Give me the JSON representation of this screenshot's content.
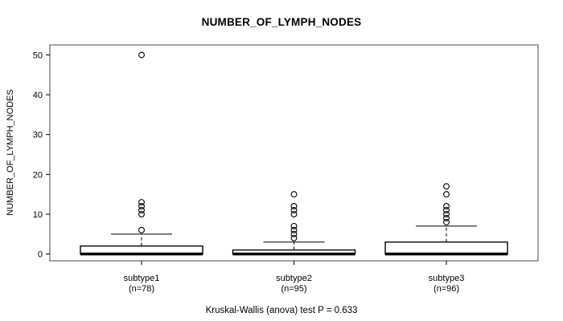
{
  "chart_data": {
    "type": "boxplot",
    "title": "NUMBER_OF_LYMPH_NODES",
    "ylabel": "NUMBER_OF_LYMPH_NODES",
    "xlabel": "",
    "caption": "Kruskal-Wallis (anova) test P = 0.633",
    "ylim": [
      0,
      50
    ],
    "yticks": [
      0,
      10,
      20,
      30,
      40,
      50
    ],
    "grid": false,
    "legend": null,
    "groups": [
      {
        "label": "subtype1",
        "sublabel": "(n=78)",
        "n": 78,
        "q1": 0,
        "median": 0,
        "q3": 2,
        "whisker_low": 0,
        "whisker_high": 5,
        "outliers": [
          6,
          10,
          11,
          12,
          13,
          50
        ]
      },
      {
        "label": "subtype2",
        "sublabel": "(n=95)",
        "n": 95,
        "q1": 0,
        "median": 0,
        "q3": 1,
        "whisker_low": 0,
        "whisker_high": 3,
        "outliers": [
          4,
          5,
          6,
          7,
          10,
          11,
          12,
          15
        ]
      },
      {
        "label": "subtype3",
        "sublabel": "(n=96)",
        "n": 96,
        "q1": 0,
        "median": 0,
        "q3": 3,
        "whisker_low": 0,
        "whisker_high": 7,
        "outliers": [
          8,
          9,
          10,
          11,
          12,
          15,
          17
        ]
      }
    ],
    "colors": {
      "box_fill": "#ffffff",
      "line": "#000000",
      "frame": "#4a4a4a"
    }
  }
}
